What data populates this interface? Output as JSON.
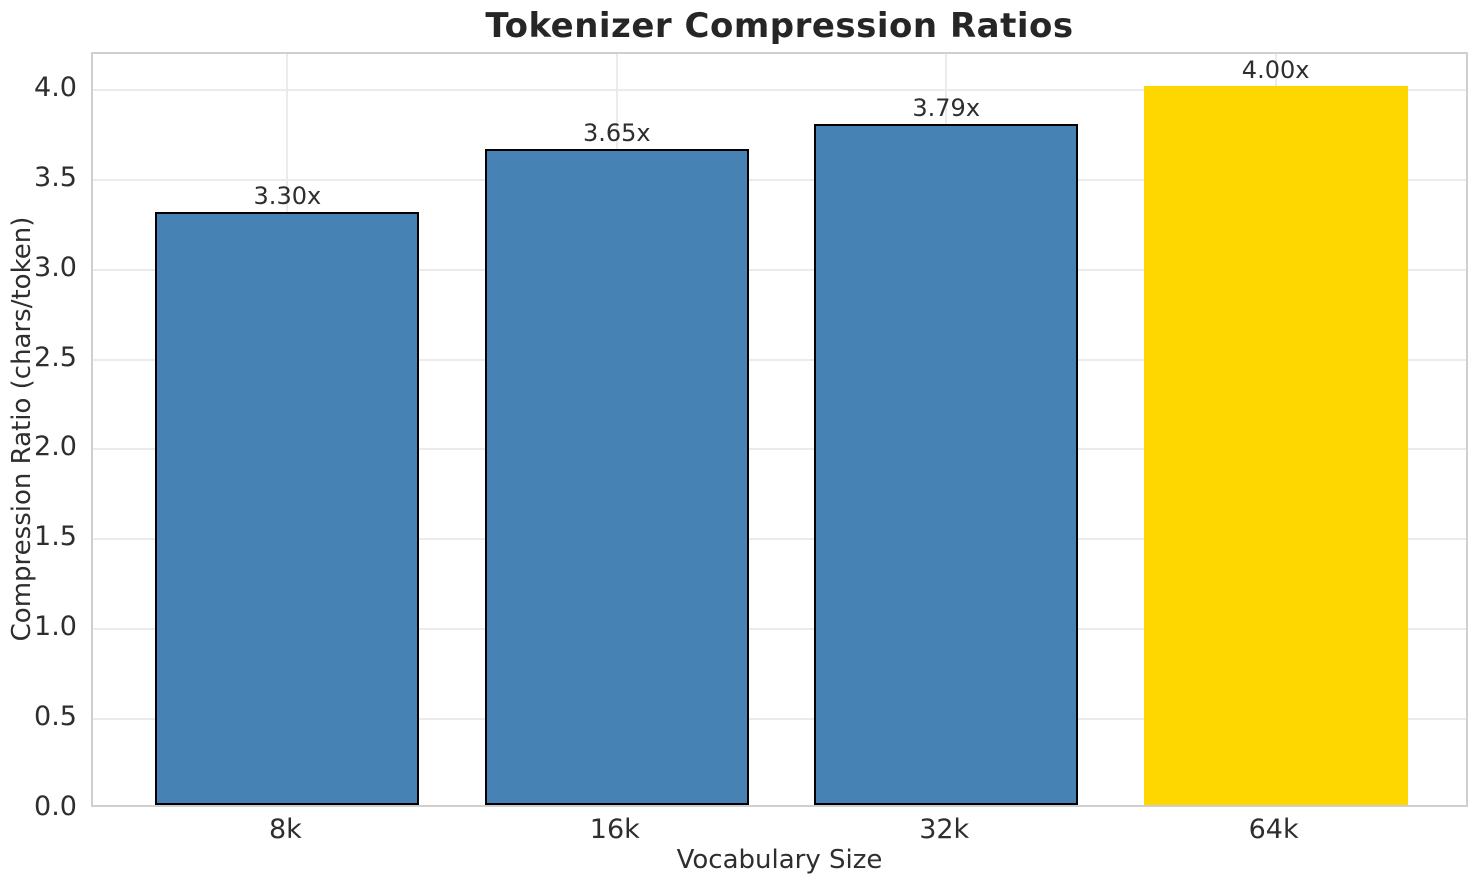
{
  "figure": {
    "title": "Tokenizer Compression Ratios",
    "xlabel": "Vocabulary Size",
    "ylabel": "Compression Ratio (chars/token)"
  },
  "chart_data": {
    "type": "bar",
    "title": "Tokenizer Compression Ratios",
    "xlabel": "Vocabulary Size",
    "ylabel": "Compression Ratio (chars/token)",
    "categories": [
      "8k",
      "16k",
      "32k",
      "64k"
    ],
    "values": [
      3.3,
      3.65,
      3.79,
      4.0
    ],
    "bar_labels": [
      "3.30x",
      "3.65x",
      "3.79x",
      "4.00x"
    ],
    "bar_colors": [
      "#4682B4",
      "#4682B4",
      "#4682B4",
      "#FFD700"
    ],
    "bar_edge_colors": [
      "#000000",
      "#000000",
      "#000000",
      "none"
    ],
    "highlighted_category": "64k",
    "ylim": [
      0,
      4.2
    ],
    "yticks": [
      0,
      0.5,
      1,
      1.5,
      2,
      2.5,
      3,
      3.5,
      4
    ],
    "ytick_labels": [
      "0.0",
      "0.5",
      "1.0",
      "1.5",
      "2.0",
      "2.5",
      "3.0",
      "3.5",
      "4.0"
    ],
    "grid": true,
    "vertical_grid": true,
    "legend_position": "none",
    "colors": {
      "grid": "#ebebeb",
      "spine": "#cfcfcf",
      "text": "#2e2e2e",
      "title": "#262626",
      "background": "#ffffff"
    }
  }
}
